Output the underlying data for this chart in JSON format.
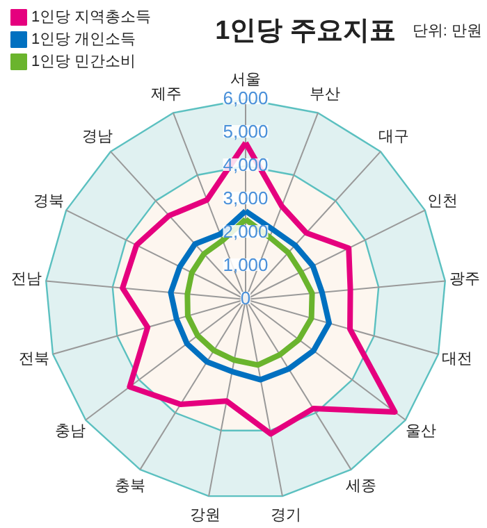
{
  "chart_data": {
    "type": "radar",
    "title": "1인당 주요지표",
    "annotations": [
      "단위: 만원"
    ],
    "categories": [
      "서울",
      "부산",
      "대구",
      "인천",
      "광주",
      "대전",
      "울산",
      "세종",
      "경기",
      "강원",
      "충북",
      "충남",
      "전북",
      "전남",
      "경북",
      "경남",
      "제주"
    ],
    "series": [
      {
        "name": "1인당 지역총소득",
        "color": "#e5007e",
        "values": [
          4700,
          3000,
          2700,
          3450,
          3150,
          3250,
          5600,
          3850,
          4100,
          3100,
          3700,
          4350,
          3050,
          3700,
          3650,
          3400,
          3200
        ]
      },
      {
        "name": "1인당 개인소득",
        "color": "#0070c0",
        "values": [
          2650,
          2250,
          2200,
          2250,
          2300,
          2600,
          2550,
          2450,
          2450,
          2200,
          2200,
          2200,
          2150,
          2250,
          2200,
          2250,
          2100
        ]
      },
      {
        "name": "1인당 민간소비",
        "color": "#6ab42d",
        "values": [
          2400,
          2000,
          1900,
          1850,
          2000,
          2050,
          2000,
          1950,
          2000,
          1850,
          1800,
          1800,
          1800,
          1750,
          1800,
          1850,
          1900
        ]
      }
    ],
    "ylim": [
      0,
      6000
    ],
    "yticks": [
      {
        "value": 0,
        "label": "0"
      },
      {
        "value": 1000,
        "label": "1,000"
      },
      {
        "value": 2000,
        "label": "2,000"
      },
      {
        "value": 3000,
        "label": "3,000"
      },
      {
        "value": 4000,
        "label": "4,000"
      },
      {
        "value": 5000,
        "label": "5,000"
      },
      {
        "value": 6000,
        "label": "6,000"
      }
    ],
    "grid": true,
    "legend": "top left",
    "line_style": "solid",
    "marker": "none"
  }
}
